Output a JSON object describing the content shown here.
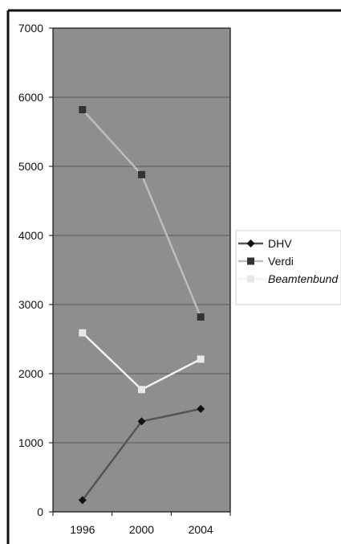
{
  "chart_data": {
    "type": "line",
    "categories": [
      "1996",
      "2000",
      "2004"
    ],
    "ylim": [
      0,
      7000
    ],
    "yticks": [
      "0",
      "1000",
      "2000",
      "3000",
      "4000",
      "5000",
      "6000",
      "7000"
    ],
    "grid": true,
    "legend": "right",
    "series": [
      {
        "name": "DHV",
        "values": [
          170,
          1310,
          1490
        ],
        "color": "#555555",
        "marker": "diamond",
        "marker_color": "#111111"
      },
      {
        "name": "Verdi",
        "values": [
          5820,
          4880,
          2820
        ],
        "color": "#bdbdbd",
        "marker": "square",
        "marker_color": "#333333"
      },
      {
        "name": "Beamtenbund",
        "values": [
          2590,
          1770,
          2210
        ],
        "color": "#f2f2f2",
        "marker": "square",
        "marker_color": "#e8e8e8"
      }
    ],
    "colors": {
      "plot_background": "#8e8e8e",
      "gridline": "#5c5c5c",
      "frame": "#111111"
    }
  }
}
